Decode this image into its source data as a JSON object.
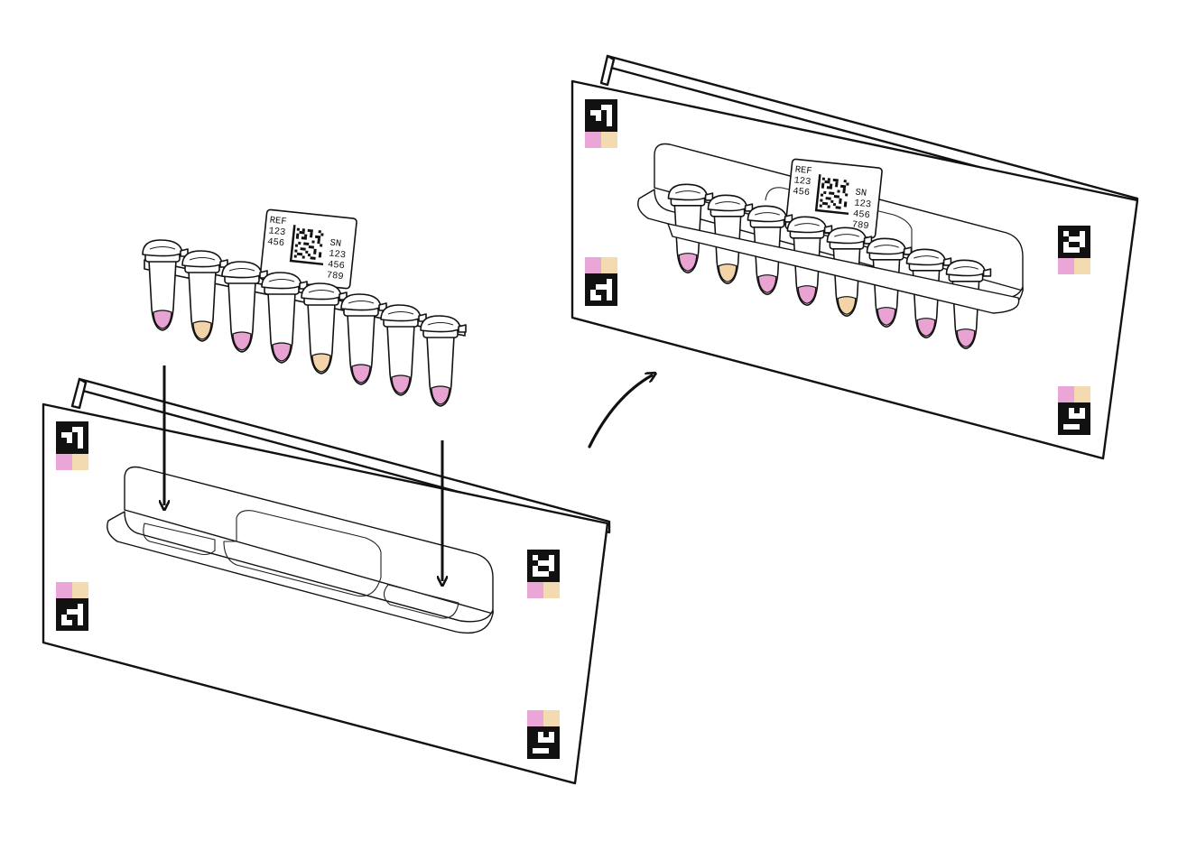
{
  "figure": {
    "label_card": {
      "ref_lines": [
        "REF",
        "123",
        "456"
      ],
      "sn_lines": [
        "SN",
        "123",
        "456",
        "789"
      ]
    },
    "tubes": {
      "count": 8,
      "liquid_colors": [
        "#e8a3d2",
        "#f3d3a8",
        "#e8a3d2",
        "#e8a3d2",
        "#f3d3a8",
        "#e8a3d2",
        "#e8a3d2",
        "#e8a3d2"
      ]
    },
    "colors": {
      "pink_liquid": "#e8a3d2",
      "peach_liquid": "#f3d3a8",
      "marker_pink": "#e9a6d6",
      "marker_peach": "#f4dab0",
      "outline": "#111111"
    },
    "icons": [
      "down-arrow-icon",
      "curved-arrow-icon",
      "fiducial-marker-icon",
      "datamatrix-code-icon"
    ]
  }
}
